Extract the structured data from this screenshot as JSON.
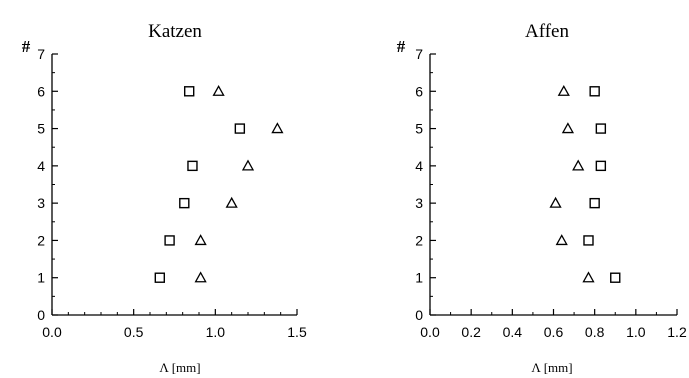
{
  "chart_data": [
    {
      "type": "scatter",
      "title": "Katzen",
      "ylabel": "#",
      "xlabel": "Λ [mm]",
      "xlim": [
        0,
        1.5
      ],
      "ylim": [
        0,
        7
      ],
      "x_ticks": [
        "0.0",
        "0.5",
        "1.0",
        "1.5"
      ],
      "y_ticks": [
        "0",
        "1",
        "2",
        "3",
        "4",
        "5",
        "6",
        "7"
      ],
      "series": [
        {
          "marker": "square",
          "x": [
            0.66,
            0.72,
            0.81,
            0.86,
            1.15,
            0.84
          ],
          "y": [
            1,
            2,
            3,
            4,
            5,
            6
          ]
        },
        {
          "marker": "triangle",
          "x": [
            0.91,
            0.91,
            1.1,
            1.2,
            1.38,
            1.02
          ],
          "y": [
            1,
            2,
            3,
            4,
            5,
            6
          ]
        }
      ]
    },
    {
      "type": "scatter",
      "title": "Affen",
      "ylabel": "#",
      "xlabel": "Λ [mm]",
      "xlim": [
        0,
        1.2
      ],
      "ylim": [
        0,
        7
      ],
      "x_ticks": [
        "0.0",
        "0.2",
        "0.4",
        "0.6",
        "0.8",
        "1.0",
        "1.2"
      ],
      "y_ticks": [
        "0",
        "1",
        "2",
        "3",
        "4",
        "5",
        "6",
        "7"
      ],
      "series": [
        {
          "marker": "square",
          "x": [
            0.9,
            0.77,
            0.8,
            0.83,
            0.83,
            0.8
          ],
          "y": [
            1,
            2,
            3,
            4,
            5,
            6
          ]
        },
        {
          "marker": "triangle",
          "x": [
            0.77,
            0.64,
            0.61,
            0.72,
            0.67,
            0.65
          ],
          "y": [
            1,
            2,
            3,
            4,
            5,
            6
          ]
        }
      ]
    }
  ]
}
